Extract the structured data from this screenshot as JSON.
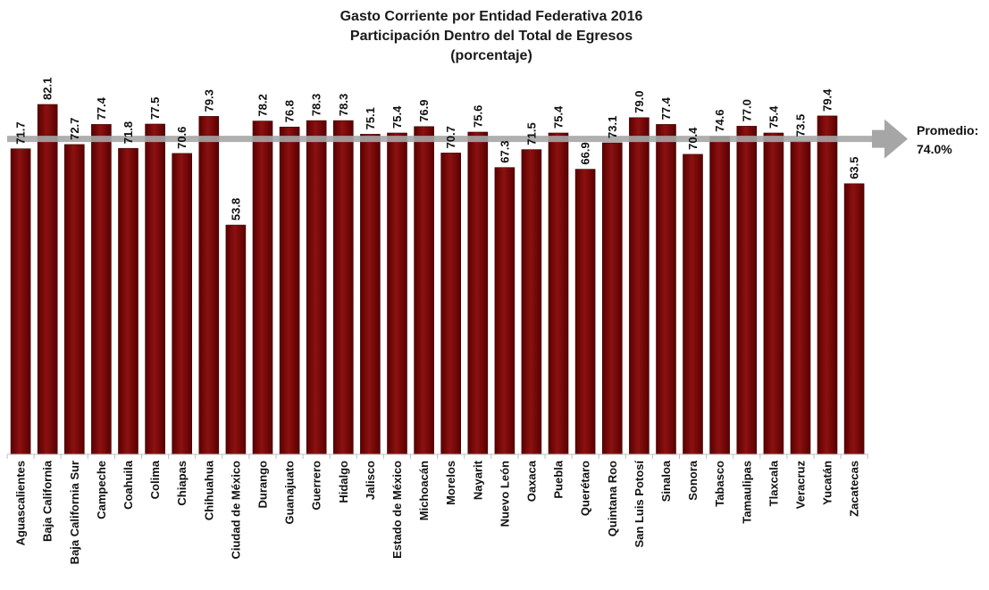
{
  "chart_data": {
    "type": "bar",
    "title_lines": [
      "Gasto Corriente por Entidad Federativa 2016",
      "Participación Dentro del Total de Egresos",
      "(porcentaje)"
    ],
    "categories": [
      "Aguascalientes",
      "Baja California",
      "Baja California Sur",
      "Campeche",
      "Coahuila",
      "Colima",
      "Chiapas",
      "Chihuahua",
      "Ciudad de México",
      "Durango",
      "Guanajuato",
      "Guerrero",
      "Hidalgo",
      "Jalisco",
      "Estado de México",
      "Michoacán",
      "Morelos",
      "Nayarit",
      "Nuevo León",
      "Oaxaca",
      "Puebla",
      "Querétaro",
      "Quintana Roo",
      "San Luis Potosí",
      "Sinaloa",
      "Sonora",
      "Tabasco",
      "Tamaulipas",
      "Tlaxcala",
      "Veracruz",
      "Yucatán",
      "Zacatecas"
    ],
    "values": [
      71.7,
      82.1,
      72.7,
      77.4,
      71.8,
      77.5,
      70.6,
      79.3,
      53.8,
      78.2,
      76.8,
      78.3,
      78.3,
      75.1,
      75.4,
      76.9,
      70.7,
      75.6,
      67.3,
      71.5,
      75.4,
      66.9,
      73.1,
      79.0,
      77.4,
      70.4,
      74.6,
      77.0,
      75.4,
      73.5,
      79.4,
      63.5
    ],
    "value_labels": [
      "71.7",
      "82.1",
      "72.7",
      "77.4",
      "71.8",
      "77.5",
      "70.6",
      "79.3",
      "53.8",
      "78.2",
      "76.8",
      "78.3",
      "78.3",
      "75.1",
      "75.4",
      "76.9",
      "70.7",
      "75.6",
      "67.3",
      "71.5",
      "75.4",
      "66.9",
      "73.1",
      "79.0",
      "77.4",
      "70.4",
      "74.6",
      "77.0",
      "75.4",
      "73.5",
      "79.4",
      "63.5"
    ],
    "average": {
      "value": 74.0,
      "label_line1": "Promedio:",
      "label_line2": "74.0%"
    },
    "ylim": [
      0,
      82.1
    ],
    "colors": {
      "bar": "#7a0a0a",
      "bar_edge": "#3a0000",
      "average_line": "#a6a6a6",
      "arrow": "#a6a6a6"
    }
  }
}
